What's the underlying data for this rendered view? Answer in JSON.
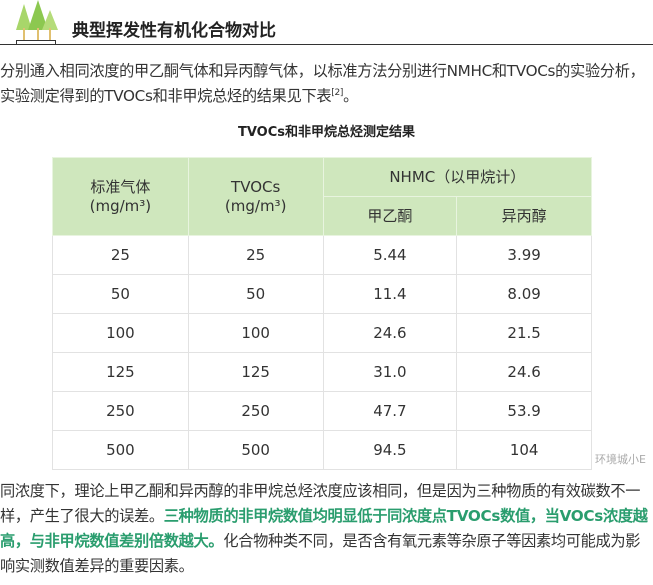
{
  "header": {
    "title": "典型挥发性有机化合物对比",
    "icon": "trees-icon"
  },
  "intro": {
    "text": "分别通入相同浓度的甲乙酮气体和异丙醇气体，以标准方法分别进行NMHC和TVOCs的实验分析，实验测定得到的TVOCs和非甲烷总烃的结果见下表",
    "ref": "[2]",
    "end": "。"
  },
  "table": {
    "caption": "TVOCs和非甲烷总烃测定结果",
    "headers": {
      "col1": "标准气体",
      "col1_unit": "(mg/m³)",
      "col2": "TVOCs",
      "col2_unit": "(mg/m³)",
      "group": "NHMC（以甲烷计）",
      "sub1": "甲乙酮",
      "sub2": "异丙醇"
    },
    "rows": [
      [
        "25",
        "25",
        "5.44",
        "3.99"
      ],
      [
        "50",
        "50",
        "11.4",
        "8.09"
      ],
      [
        "100",
        "100",
        "24.6",
        "21.5"
      ],
      [
        "125",
        "125",
        "31.0",
        "24.6"
      ],
      [
        "250",
        "250",
        "47.7",
        "53.9"
      ],
      [
        "500",
        "500",
        "94.5",
        "104"
      ]
    ],
    "header_color": "#cfe7bd"
  },
  "watermark": "环境城小E",
  "conclusion": {
    "pre": "同浓度下，理论上甲乙酮和异丙醇的非甲烷总烃浓度应该相同，但是因为三种物质的有效碳数不一样，产生了很大的误差。",
    "highlight": "三种物质的非甲烷数值均明显低于同浓度点TVOCs数值，当VOCs浓度越高，与非甲烷数值差别倍数越大。",
    "post": "化合物种类不同，是否含有氧元素等杂原子等因素均可能成为影响实测数值差异的重要因素。",
    "highlight_color": "#2a9d6e"
  }
}
